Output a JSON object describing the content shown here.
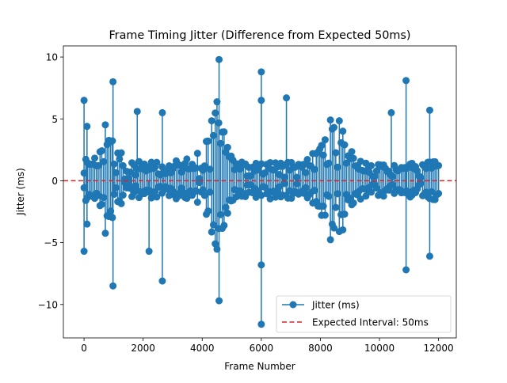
{
  "chart_data": {
    "type": "stem",
    "title": "Frame Timing Jitter (Difference from Expected 50ms)",
    "xlabel": "Frame Number",
    "ylabel": "Jitter (ms)",
    "xlim": [
      -700,
      12600
    ],
    "ylim": [
      -12.7,
      10.9
    ],
    "xticks": [
      0,
      2000,
      4000,
      6000,
      8000,
      10000,
      12000
    ],
    "xtick_labels": [
      "0",
      "2000",
      "4000",
      "6000",
      "8000",
      "10000",
      "12000"
    ],
    "yticks": [
      -10,
      -5,
      0,
      5,
      10
    ],
    "ytick_labels": [
      "−10",
      "−5",
      "0",
      "5",
      "10"
    ],
    "grid": false,
    "n_frames": 12000,
    "frame_step": 60,
    "baseline": 0,
    "series": [
      {
        "name": "Jitter (ms)",
        "color": "#1f77b4",
        "style": "stem-with-circle-markers",
        "envelope": [
          {
            "frame": 0,
            "amp": 1.6
          },
          {
            "frame": 500,
            "amp": 2.8
          },
          {
            "frame": 800,
            "amp": 5.5
          },
          {
            "frame": 1100,
            "amp": 2.6
          },
          {
            "frame": 1600,
            "amp": 1.6
          },
          {
            "frame": 2500,
            "amp": 1.5
          },
          {
            "frame": 3400,
            "amp": 1.7
          },
          {
            "frame": 4000,
            "amp": 2.6
          },
          {
            "frame": 4500,
            "amp": 6.5
          },
          {
            "frame": 4900,
            "amp": 2.6
          },
          {
            "frame": 5500,
            "amp": 1.4
          },
          {
            "frame": 6500,
            "amp": 1.5
          },
          {
            "frame": 7500,
            "amp": 1.6
          },
          {
            "frame": 8000,
            "amp": 3.0
          },
          {
            "frame": 8500,
            "amp": 6.3
          },
          {
            "frame": 9000,
            "amp": 2.5
          },
          {
            "frame": 9600,
            "amp": 1.4
          },
          {
            "frame": 10500,
            "amp": 1.3
          },
          {
            "frame": 11500,
            "amp": 1.5
          },
          {
            "frame": 12000,
            "amp": 1.6
          }
        ],
        "spikes": [
          {
            "frame": 0,
            "value": 6.5
          },
          {
            "frame": 0,
            "value": -5.7
          },
          {
            "frame": 100,
            "value": 4.4
          },
          {
            "frame": 100,
            "value": -3.5
          },
          {
            "frame": 980,
            "value": 8.0
          },
          {
            "frame": 980,
            "value": -8.5
          },
          {
            "frame": 1800,
            "value": 5.6
          },
          {
            "frame": 2200,
            "value": -5.7
          },
          {
            "frame": 2650,
            "value": 5.5
          },
          {
            "frame": 2650,
            "value": -8.1
          },
          {
            "frame": 4570,
            "value": 9.8
          },
          {
            "frame": 4570,
            "value": -9.7
          },
          {
            "frame": 6000,
            "value": 8.8
          },
          {
            "frame": 6000,
            "value": 6.5
          },
          {
            "frame": 6000,
            "value": -6.8
          },
          {
            "frame": 6000,
            "value": -11.6
          },
          {
            "frame": 6850,
            "value": 6.7
          },
          {
            "frame": 10900,
            "value": 8.1
          },
          {
            "frame": 10900,
            "value": -7.2
          },
          {
            "frame": 10400,
            "value": 5.5
          },
          {
            "frame": 11700,
            "value": 5.7
          },
          {
            "frame": 11700,
            "value": -6.1
          }
        ]
      }
    ],
    "reference_line": {
      "name": "Expected Interval: 50ms",
      "y": 0,
      "color": "#d62728",
      "style": "dashed"
    },
    "legend": {
      "position": "bottom-right",
      "entries": [
        "Jitter (ms)",
        "Expected Interval: 50ms"
      ]
    }
  }
}
